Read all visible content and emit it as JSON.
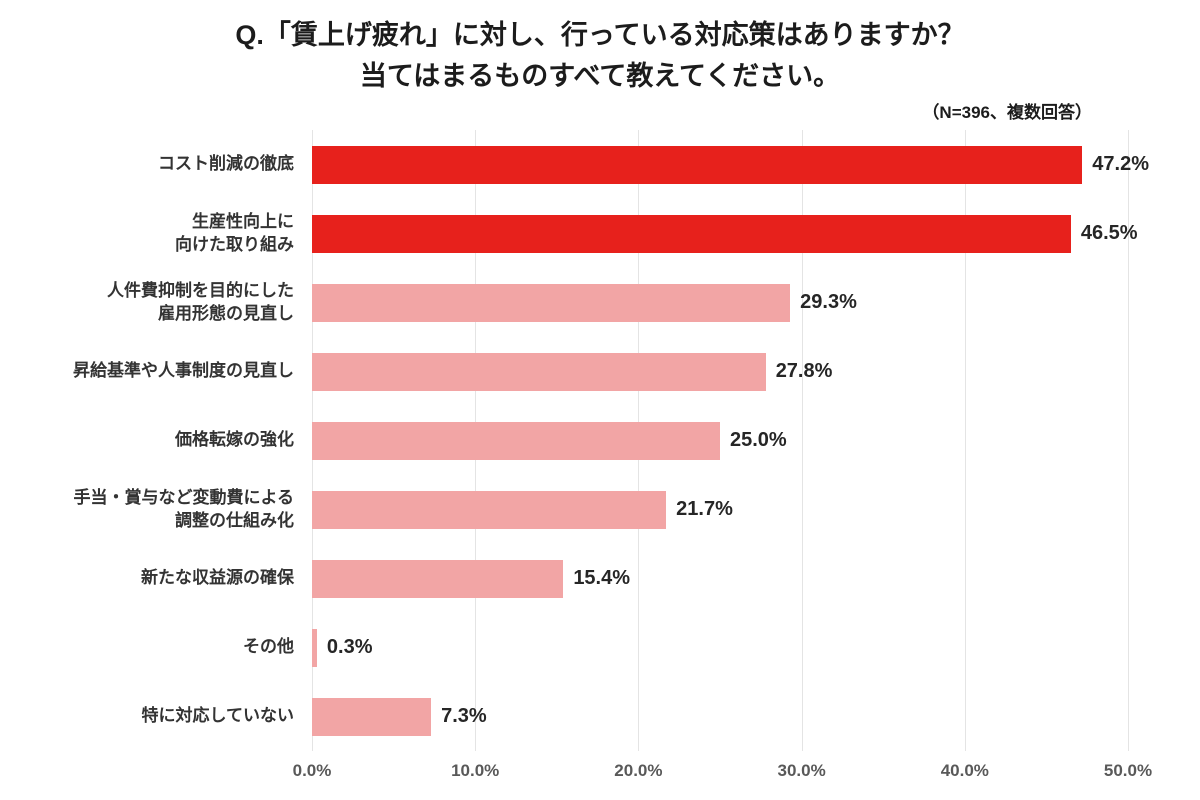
{
  "header": {
    "title_line1": "Q.「賃上げ疲れ」に対し、行っている対応策はありますか？",
    "title_line2": "当てはまるものすべて教えてください。",
    "note": "（N=396、複数回答）"
  },
  "chart_data": {
    "type": "bar",
    "orientation": "horizontal",
    "title": "Q.「賃上げ疲れ」に対し、行っている対応策はありますか？当てはまるものすべて教えてください。",
    "subtitle": "（N=396、複数回答）",
    "categories": [
      "コスト削減の徹底",
      "生産性向上に\n向けた取り組み",
      "人件費抑制を目的にした\n雇用形態の見直し",
      "昇給基準や人事制度の見直し",
      "価格転嫁の強化",
      "手当・賞与など変動費による\n調整の仕組み化",
      "新たな収益源の確保",
      "その他",
      "特に対応していない"
    ],
    "values": [
      47.2,
      46.5,
      29.3,
      27.8,
      25.0,
      21.7,
      15.4,
      0.3,
      7.3
    ],
    "value_labels": [
      "47.2%",
      "46.5%",
      "29.3%",
      "27.8%",
      "25.0%",
      "21.7%",
      "15.4%",
      "0.3%",
      "7.3%"
    ],
    "bar_colors": [
      "#e7211c",
      "#e7211c",
      "#f2a5a5",
      "#f2a5a5",
      "#f2a5a5",
      "#f2a5a5",
      "#f2a5a5",
      "#f2a5a5",
      "#f2a5a5"
    ],
    "xlabel": "",
    "ylabel": "",
    "xlim": [
      0,
      50
    ],
    "x_ticks": [
      "0.0%",
      "10.0%",
      "20.0%",
      "30.0%",
      "40.0%",
      "50.0%"
    ],
    "x_tick_values": [
      0,
      10,
      20,
      30,
      40,
      50
    ],
    "grid": true,
    "legend": "none",
    "colors": {
      "highlight": "#e7211c",
      "base": "#f2a5a5",
      "gridline": "#e4e4e4",
      "text": "#333333",
      "axis_text": "#595959"
    }
  }
}
